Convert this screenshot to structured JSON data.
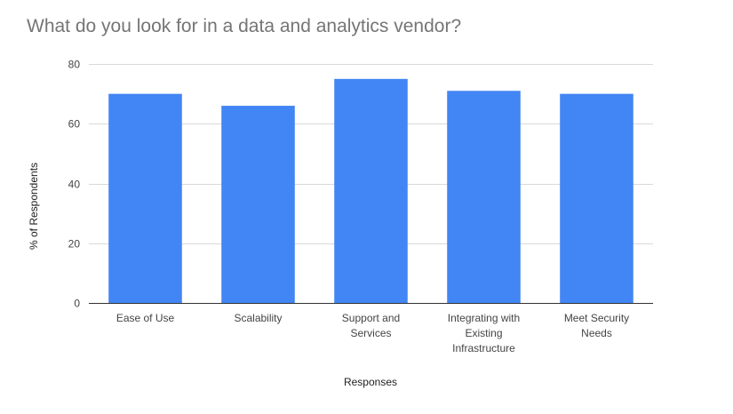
{
  "chart_data": {
    "type": "bar",
    "title": "What do you look for in a data and analytics vendor?",
    "xlabel": "Responses",
    "ylabel": "% of Respondents",
    "categories": [
      [
        "Ease of Use"
      ],
      [
        "Scalability"
      ],
      [
        "Support and",
        "Services"
      ],
      [
        "Integrating with",
        "Existing",
        "Infrastructure"
      ],
      [
        "Meet Security",
        "Needs"
      ]
    ],
    "values": [
      70,
      66,
      75,
      71,
      70
    ],
    "ylim": [
      0,
      80
    ],
    "yticks": [
      0,
      20,
      40,
      60,
      80
    ],
    "grid": true,
    "bar_color": "#4285f4"
  }
}
